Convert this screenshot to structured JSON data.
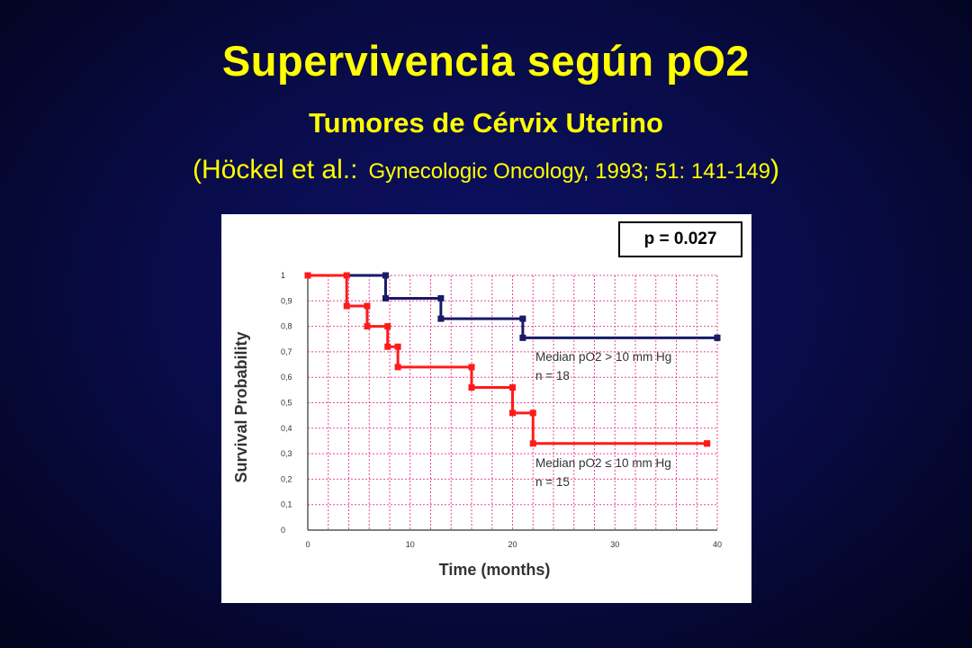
{
  "slide": {
    "title": "Supervivencia según pO2",
    "subtitle": "Tumores de Cérvix Uterino",
    "citation_open": "(Höckel et al.:",
    "citation_ref": "Gynecologic Oncology, 1993; 51: 141-149",
    "citation_close": ")"
  },
  "colors": {
    "title": "#ffff00",
    "series_high": "#1a1a66",
    "series_low": "#ff1a1a",
    "grid": "#e8489a"
  },
  "chart_data": {
    "type": "line",
    "subtype": "kaplan-meier step",
    "xlabel": "Time (months)",
    "ylabel": "Survival Probability",
    "xlim": [
      0,
      40
    ],
    "ylim": [
      0,
      1
    ],
    "x_ticks": [
      "0",
      "10",
      "20",
      "30",
      "40"
    ],
    "y_ticks": [
      "0",
      "0,1",
      "0,2",
      "0,3",
      "0,4",
      "0,5",
      "0,6",
      "0,7",
      "0,8",
      "0,9",
      "1"
    ],
    "grid": true,
    "annotation": "p = 0.027",
    "series": [
      {
        "name": "Median pO2 > 10 mm Hg",
        "n_label": "n = 18",
        "color": "#1a1a66",
        "x": [
          0,
          7.6,
          13,
          21,
          40
        ],
        "y": [
          1.0,
          0.91,
          0.83,
          0.755,
          0.755
        ]
      },
      {
        "name": "Median pO2 ≤ 10 mm Hg",
        "n_label": "n = 15",
        "color": "#ff1a1a",
        "x": [
          0,
          3.8,
          5.8,
          7.8,
          8.8,
          16,
          20,
          22,
          39
        ],
        "y": [
          1.0,
          0.88,
          0.8,
          0.72,
          0.64,
          0.56,
          0.46,
          0.34,
          0.34
        ]
      }
    ]
  }
}
